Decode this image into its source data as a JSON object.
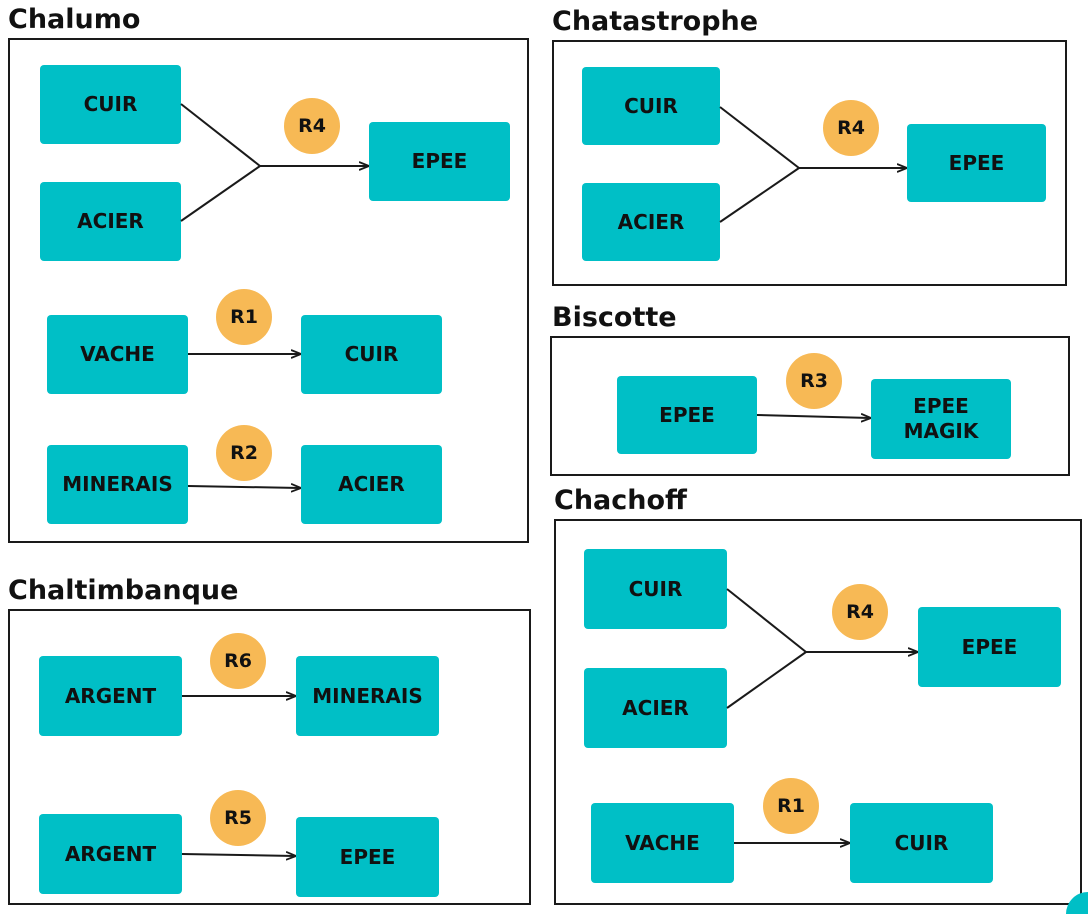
{
  "panels": {
    "chalumo": {
      "title": "Chalumo",
      "nodes": {
        "cuir": "CUIR",
        "acier": "ACIER",
        "epee": "EPEE",
        "vache": "VACHE",
        "cuir2": "CUIR",
        "minerais": "MINERAIS",
        "acier2": "ACIER"
      },
      "rules": {
        "r4": "R4",
        "r1": "R1",
        "r2": "R2"
      }
    },
    "chatastrophe": {
      "title": "Chatastrophe",
      "nodes": {
        "cuir": "CUIR",
        "acier": "ACIER",
        "epee": "EPEE"
      },
      "rules": {
        "r4": "R4"
      }
    },
    "biscotte": {
      "title": "Biscotte",
      "nodes": {
        "epee": "EPEE",
        "epee_magik": "EPEE\nMAGIK"
      },
      "rules": {
        "r3": "R3"
      }
    },
    "chachoff": {
      "title": "Chachoff",
      "nodes": {
        "cuir": "CUIR",
        "acier": "ACIER",
        "epee": "EPEE",
        "vache": "VACHE",
        "cuir2": "CUIR"
      },
      "rules": {
        "r4": "R4",
        "r1": "R1"
      }
    },
    "chaltimbanque": {
      "title": "Chaltimbanque",
      "nodes": {
        "argent": "ARGENT",
        "minerais": "MINERAIS",
        "argent2": "ARGENT",
        "epee": "EPEE"
      },
      "rules": {
        "r6": "R6",
        "r5": "R5"
      }
    }
  },
  "colors": {
    "node": "#00bfc6",
    "badge": "#f7b955",
    "line": "#1a1a1a"
  }
}
